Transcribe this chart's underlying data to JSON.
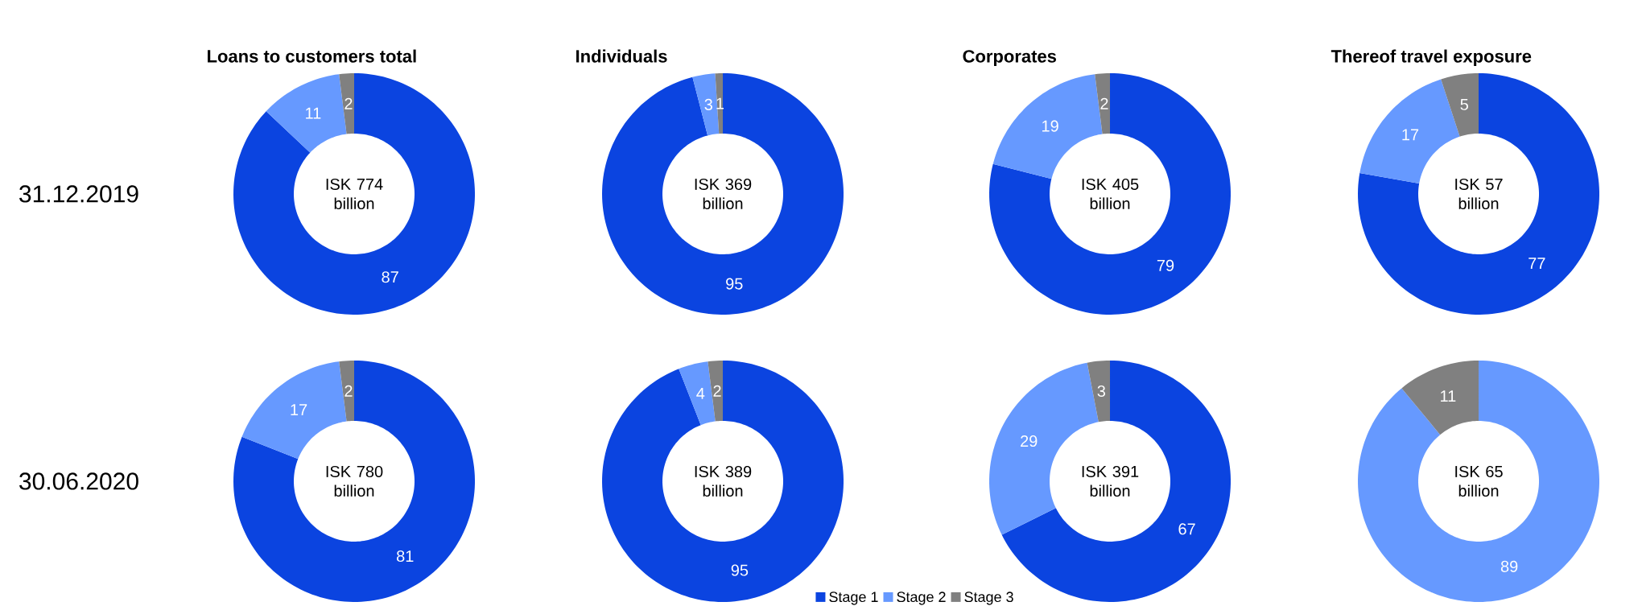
{
  "chart_data": [
    {
      "type": "donut",
      "title": "Loans to customers total",
      "categories": [
        null,
        null,
        null
      ],
      "values": [
        87,
        11,
        2
      ],
      "colors": [
        "#0b44e0",
        "#6699ff",
        "#808080"
      ],
      "data_labels": true,
      "annotations": [
        "ISK 774 billion",
        "31.12.2019"
      ]
    },
    {
      "type": "donut",
      "title": "Individuals",
      "categories": [
        null,
        null,
        null
      ],
      "values": [
        95,
        3,
        1
      ],
      "colors": [
        "#0b44e0",
        "#6699ff",
        "#808080"
      ],
      "data_labels": true,
      "annotations": [
        "ISK 369 billion"
      ]
    },
    {
      "type": "donut",
      "title": "Corporates",
      "categories": [
        null,
        null,
        null
      ],
      "values": [
        79,
        19,
        2
      ],
      "colors": [
        "#0b44e0",
        "#6699ff",
        "#808080"
      ],
      "data_labels": true,
      "annotations": [
        "ISK 405 billion"
      ]
    },
    {
      "type": "donut",
      "title": "Thereof travel exposure",
      "categories": [
        null,
        null,
        null
      ],
      "values": [
        77,
        17,
        5
      ],
      "colors": [
        "#0b44e0",
        "#6699ff",
        "#808080"
      ],
      "data_labels": true,
      "annotations": [
        "ISK 57 billion"
      ]
    },
    {
      "type": "donut",
      "categories": [
        null,
        null,
        null
      ],
      "values": [
        81,
        17,
        2
      ],
      "colors": [
        "#0b44e0",
        "#6699ff",
        "#808080"
      ],
      "data_labels": true,
      "annotations": [
        "ISK 780 billion",
        "30.06.2020"
      ]
    },
    {
      "type": "donut",
      "categories": [
        "Stage 1",
        "Stage 2",
        "Stage 3"
      ],
      "values": [
        95,
        4,
        2
      ],
      "colors": [
        "#0b44e0",
        "#6699ff",
        "#808080"
      ],
      "data_labels": true,
      "legend": "bottom",
      "annotations": [
        "ISK 389 billion"
      ]
    },
    {
      "type": "donut",
      "categories": [
        null,
        null,
        null
      ],
      "values": [
        67,
        29,
        3
      ],
      "colors": [
        "#0b44e0",
        "#6699ff",
        "#808080"
      ],
      "data_labels": true,
      "annotations": [
        "ISK 391 billion"
      ]
    },
    {
      "type": "donut",
      "categories": [
        null,
        null,
        null
      ],
      "values": [
        0,
        89,
        11
      ],
      "colors": [
        "#0b44e0",
        "#6699ff",
        "#808080"
      ],
      "value_labels": [
        null,
        "89",
        "11"
      ],
      "annotations": [
        "ISK 65 billion"
      ]
    }
  ]
}
